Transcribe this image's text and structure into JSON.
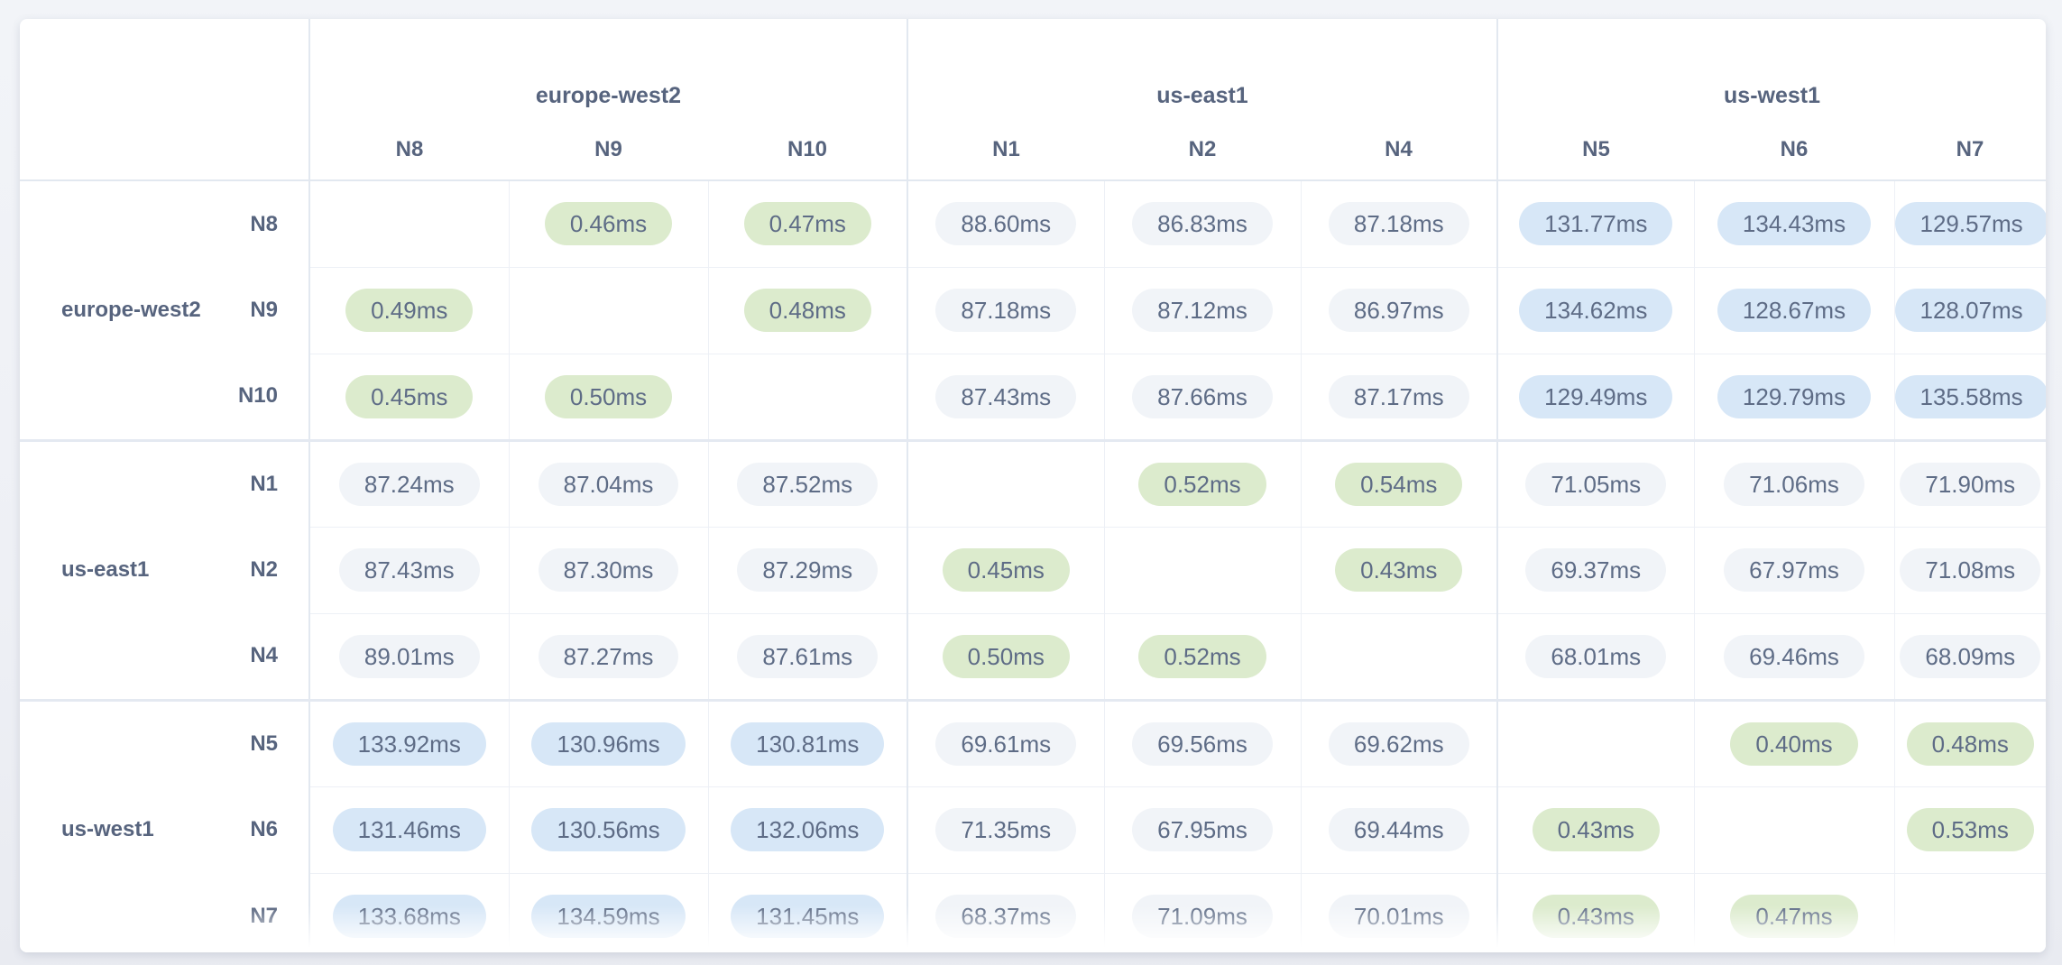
{
  "page": {
    "background_color": "#eef0f5",
    "card_background": "#ffffff"
  },
  "chart_data": {
    "type": "heatmap",
    "title": "",
    "unit": "ms",
    "description_hint": "inter-node network latency matrix grouped by cloud region",
    "col_groups": [
      {
        "region": "europe-west2",
        "nodes": [
          "N8",
          "N9",
          "N10"
        ]
      },
      {
        "region": "us-east1",
        "nodes": [
          "N1",
          "N2",
          "N4"
        ]
      },
      {
        "region": "us-west1",
        "nodes": [
          "N5",
          "N6",
          "N7"
        ]
      }
    ],
    "row_groups": [
      {
        "region": "europe-west2",
        "nodes": [
          "N8",
          "N9",
          "N10"
        ]
      },
      {
        "region": "us-east1",
        "nodes": [
          "N1",
          "N2",
          "N4"
        ]
      },
      {
        "region": "us-west1",
        "nodes": [
          "N5",
          "N6",
          "N7"
        ]
      }
    ],
    "columns_order": [
      "N8",
      "N9",
      "N10",
      "N1",
      "N2",
      "N4",
      "N5",
      "N6",
      "N7"
    ],
    "matrix": [
      [
        null,
        0.46,
        0.47,
        88.6,
        86.83,
        87.18,
        131.77,
        134.43,
        129.57
      ],
      [
        0.49,
        null,
        0.48,
        87.18,
        87.12,
        86.97,
        134.62,
        128.67,
        128.07
      ],
      [
        0.45,
        0.5,
        null,
        87.43,
        87.66,
        87.17,
        129.49,
        129.79,
        135.58
      ],
      [
        87.24,
        87.04,
        87.52,
        null,
        0.52,
        0.54,
        71.05,
        71.06,
        71.9
      ],
      [
        87.43,
        87.3,
        87.29,
        0.45,
        null,
        0.43,
        69.37,
        67.97,
        71.08
      ],
      [
        89.01,
        87.27,
        87.61,
        0.5,
        0.52,
        null,
        68.01,
        69.46,
        68.09
      ],
      [
        133.92,
        130.96,
        130.81,
        69.61,
        69.56,
        69.62,
        null,
        0.4,
        0.48
      ],
      [
        131.46,
        130.56,
        132.06,
        71.35,
        67.95,
        69.44,
        0.43,
        null,
        0.53
      ],
      [
        133.68,
        134.59,
        131.45,
        68.37,
        71.09,
        70.01,
        0.43,
        0.47,
        null
      ]
    ],
    "value_format": "two decimals + 'ms' suffix",
    "color_coding": {
      "fast": {
        "max_ms": 1,
        "background": "#dcebcd"
      },
      "mid": {
        "max_ms": 100,
        "background": "#f1f4f8"
      },
      "slow": {
        "min_ms": 100,
        "background": "#d7e7f7"
      }
    },
    "text_colors": {
      "labels": "#57647e",
      "values": "#5e6c86"
    },
    "legend_position": "none",
    "grid": "on"
  }
}
